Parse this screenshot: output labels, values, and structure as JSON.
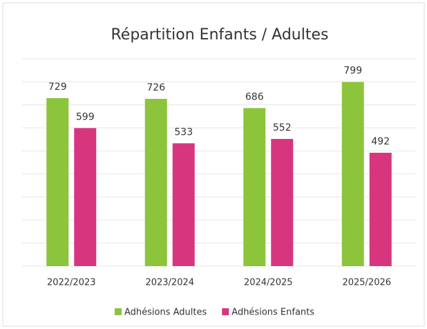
{
  "chart_data": {
    "type": "bar",
    "title": "Répartition Enfants / Adultes",
    "categories": [
      "2022/2023",
      "2023/2024",
      "2024/2025",
      "2025/2026"
    ],
    "series": [
      {
        "name": "Adhésions Adultes",
        "color": "#8cc43c",
        "values": [
          729,
          726,
          686,
          799
        ]
      },
      {
        "name": "Adhésions Enfants",
        "color": "#d7367f",
        "values": [
          599,
          533,
          552,
          492
        ]
      }
    ],
    "ylim": [
      0,
      900
    ],
    "yticks": [
      0,
      100,
      200,
      300,
      400,
      500,
      600,
      700,
      800,
      900
    ],
    "grid": true,
    "legend": "bottom"
  }
}
